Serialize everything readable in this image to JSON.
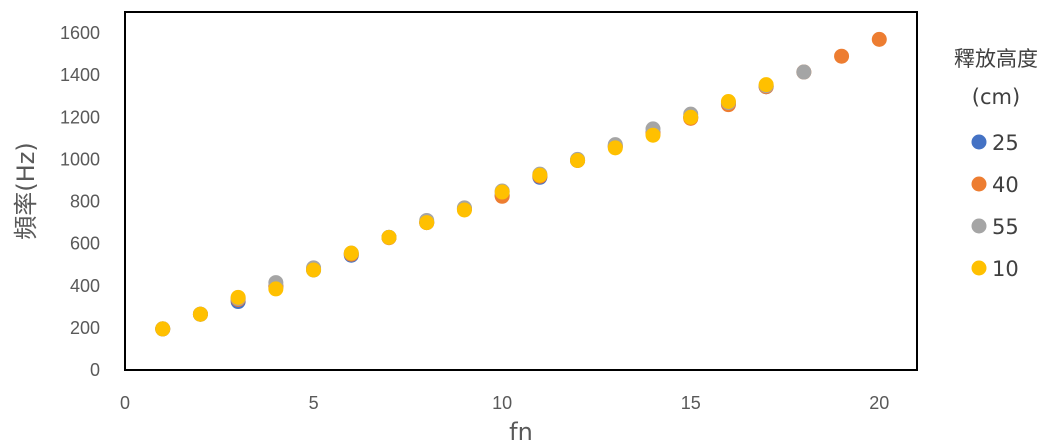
{
  "chart_data": {
    "type": "scatter",
    "xlabel": "fn",
    "ylabel": "頻率(Hz)",
    "xlim": [
      0,
      21
    ],
    "ylim": [
      0,
      1700
    ],
    "xticks": [
      0,
      5,
      10,
      15,
      20
    ],
    "yticks": [
      0,
      200,
      400,
      600,
      800,
      1000,
      1200,
      1400,
      1600
    ],
    "grid": false,
    "legend": {
      "title_line1": "釋放高度",
      "title_line2": "(cm)",
      "position": "right"
    },
    "series": [
      {
        "name": "25",
        "color": "#4472C4",
        "x": [
          1,
          2,
          3,
          4,
          5,
          6,
          7,
          8,
          9,
          10,
          11,
          12,
          13,
          14,
          15,
          16,
          17
        ],
        "y": [
          195,
          265,
          325,
          395,
          475,
          545,
          630,
          700,
          765,
          830,
          915,
          995,
          1060,
          1125,
          1200,
          1265,
          1345
        ]
      },
      {
        "name": "40",
        "color": "#ED7D31",
        "x": [
          1,
          2,
          3,
          4,
          5,
          6,
          7,
          8,
          9,
          10,
          11,
          12,
          13,
          14,
          15,
          16,
          17,
          18,
          19,
          20
        ],
        "y": [
          195,
          265,
          335,
          400,
          480,
          550,
          628,
          700,
          765,
          825,
          920,
          995,
          1065,
          1125,
          1195,
          1260,
          1345,
          1415,
          1490,
          1570
        ]
      },
      {
        "name": "55",
        "color": "#A5A5A5",
        "x": [
          1,
          2,
          3,
          4,
          5,
          6,
          7,
          8,
          9,
          10,
          11,
          12,
          13,
          14,
          15,
          16,
          17,
          18
        ],
        "y": [
          195,
          265,
          340,
          415,
          485,
          555,
          630,
          710,
          770,
          850,
          930,
          1000,
          1070,
          1145,
          1215,
          1270,
          1350,
          1415
        ]
      },
      {
        "name": "10",
        "color": "#FFC000",
        "x": [
          1,
          2,
          3,
          4,
          5,
          6,
          7,
          8,
          9,
          10,
          11,
          12,
          13,
          14,
          15,
          16,
          17
        ],
        "y": [
          195,
          265,
          345,
          385,
          475,
          555,
          630,
          700,
          760,
          845,
          925,
          995,
          1055,
          1115,
          1200,
          1275,
          1355
        ]
      }
    ]
  }
}
